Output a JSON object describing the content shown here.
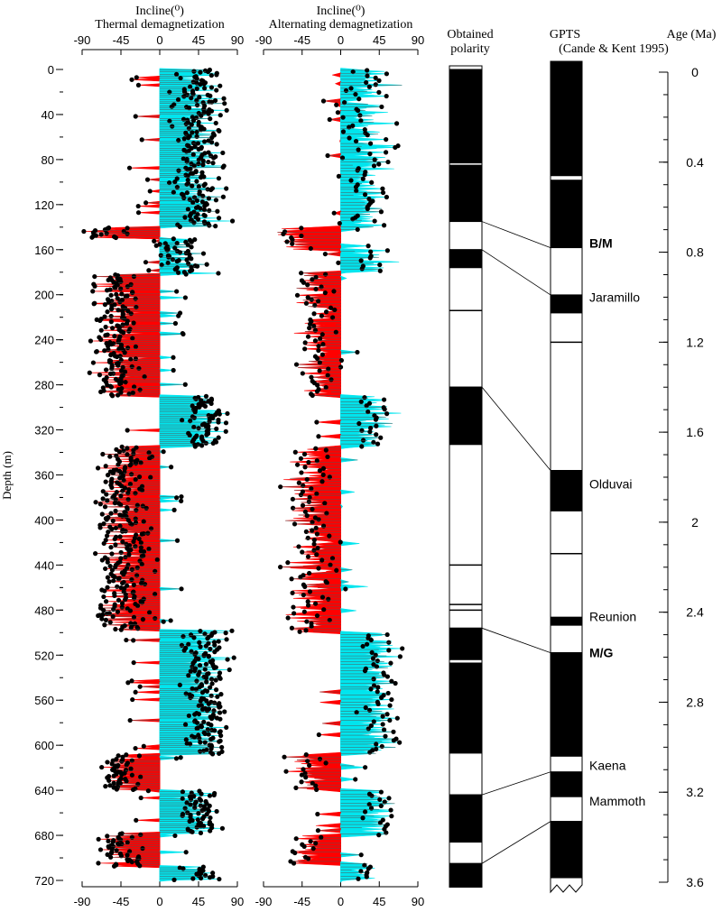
{
  "chart_data": {
    "type": "composite-magnetostratigraphy",
    "depth_axis": {
      "label": "Depth (m)",
      "ylim": [
        0,
        720
      ],
      "major_ticks": [
        0,
        40,
        80,
        120,
        160,
        200,
        240,
        280,
        320,
        360,
        400,
        440,
        480,
        520,
        560,
        600,
        640,
        680,
        720
      ],
      "minor_step": 20
    },
    "inclination_ticks": [
      -90,
      -45,
      0,
      45,
      90
    ],
    "xlim": [
      -90,
      90
    ],
    "panels": [
      {
        "key": "thermal",
        "title_line1": "Incline(⁰)",
        "title_line2": "Thermal demagnetization",
        "normal_color": "#00e5ee",
        "reversed_color": "#ff0000",
        "intervals": [
          {
            "from": 0,
            "to": 140,
            "mean": 45,
            "spread": 30
          },
          {
            "from": 140,
            "to": 150,
            "mean": -60,
            "spread": 25
          },
          {
            "from": 150,
            "to": 182,
            "mean": 25,
            "spread": 35
          },
          {
            "from": 182,
            "to": 290,
            "mean": -50,
            "spread": 25
          },
          {
            "from": 290,
            "to": 335,
            "mean": 50,
            "spread": 25
          },
          {
            "from": 335,
            "to": 498,
            "mean": -42,
            "spread": 30
          },
          {
            "from": 498,
            "to": 608,
            "mean": 55,
            "spread": 25
          },
          {
            "from": 608,
            "to": 640,
            "mean": -45,
            "spread": 25
          },
          {
            "from": 640,
            "to": 678,
            "mean": 45,
            "spread": 25
          },
          {
            "from": 678,
            "to": 708,
            "mean": -45,
            "spread": 25
          },
          {
            "from": 708,
            "to": 720,
            "mean": 45,
            "spread": 25
          }
        ]
      },
      {
        "key": "af",
        "title_line1": "Incline(⁰)",
        "title_line2": "Alternating demagnetization",
        "normal_color": "#00e5ee",
        "reversed_color": "#ff0000",
        "intervals": [
          {
            "from": 0,
            "to": 140,
            "mean": 30,
            "spread": 30
          },
          {
            "from": 140,
            "to": 160,
            "mean": -50,
            "spread": 25
          },
          {
            "from": 160,
            "to": 180,
            "mean": 30,
            "spread": 30
          },
          {
            "from": 180,
            "to": 290,
            "mean": -25,
            "spread": 25
          },
          {
            "from": 290,
            "to": 335,
            "mean": 35,
            "spread": 25
          },
          {
            "from": 335,
            "to": 500,
            "mean": -35,
            "spread": 30
          },
          {
            "from": 500,
            "to": 608,
            "mean": 45,
            "spread": 25
          },
          {
            "from": 608,
            "to": 640,
            "mean": -40,
            "spread": 20
          },
          {
            "from": 640,
            "to": 680,
            "mean": 45,
            "spread": 20
          },
          {
            "from": 680,
            "to": 705,
            "mean": -40,
            "spread": 20
          },
          {
            "from": 705,
            "to": 720,
            "mean": 25,
            "spread": 20
          }
        ]
      }
    ],
    "obtained_polarity": {
      "title_line1": "Obtained",
      "title_line2": "polarity",
      "bands": [
        {
          "from": 0,
          "to": 83,
          "polarity": "normal"
        },
        {
          "from": 85,
          "to": 135,
          "polarity": "normal"
        },
        {
          "from": 135,
          "to": 160,
          "polarity": "reversed"
        },
        {
          "from": 160,
          "to": 176,
          "polarity": "normal"
        },
        {
          "from": 176,
          "to": 282,
          "polarity": "reversed"
        },
        {
          "from": 282,
          "to": 333,
          "polarity": "normal"
        },
        {
          "from": 333,
          "to": 496,
          "polarity": "reversed"
        },
        {
          "from": 496,
          "to": 524,
          "polarity": "normal"
        },
        {
          "from": 524,
          "to": 527,
          "polarity": "reversed"
        },
        {
          "from": 527,
          "to": 607,
          "polarity": "normal"
        },
        {
          "from": 607,
          "to": 644,
          "polarity": "reversed"
        },
        {
          "from": 644,
          "to": 686,
          "polarity": "normal"
        },
        {
          "from": 686,
          "to": 705,
          "polarity": "reversed"
        },
        {
          "from": 705,
          "to": 726,
          "polarity": "normal"
        }
      ],
      "extra_lines": [
        214,
        440,
        475,
        480
      ]
    },
    "gpts": {
      "title_line1": "GPTS",
      "title_line2": "(Cande & Kent 1995)",
      "bands": [
        {
          "from": 0,
          "to": 0.46,
          "polarity": "normal"
        },
        {
          "from": 0.48,
          "to": 0.78,
          "polarity": "normal"
        },
        {
          "from": 0.78,
          "to": 0.99,
          "polarity": "reversed"
        },
        {
          "from": 0.99,
          "to": 1.07,
          "polarity": "normal"
        },
        {
          "from": 1.07,
          "to": 1.77,
          "polarity": "reversed"
        },
        {
          "from": 1.77,
          "to": 1.95,
          "polarity": "normal"
        },
        {
          "from": 1.95,
          "to": 2.58,
          "polarity": "reversed"
        },
        {
          "from": 2.58,
          "to": 3.04,
          "polarity": "normal"
        },
        {
          "from": 3.04,
          "to": 3.11,
          "polarity": "reversed"
        },
        {
          "from": 3.11,
          "to": 3.22,
          "polarity": "normal"
        },
        {
          "from": 3.22,
          "to": 3.33,
          "polarity": "reversed"
        },
        {
          "from": 3.33,
          "to": 3.58,
          "polarity": "normal"
        }
      ],
      "extra_lines": [
        1.2,
        2.14
      ],
      "thin_normal": [
        {
          "from": 2.42,
          "to": 2.46
        }
      ],
      "labels": [
        {
          "text": "B/M",
          "age": 0.76,
          "bold": true
        },
        {
          "text": "Jaramillo",
          "age": 1.0,
          "bold": false
        },
        {
          "text": "Olduvai",
          "age": 1.83,
          "bold": false
        },
        {
          "text": "Reunion",
          "age": 2.42,
          "bold": false
        },
        {
          "text": "M/G",
          "age": 2.58,
          "bold": true
        },
        {
          "text": "Kaena",
          "age": 3.08,
          "bold": false
        },
        {
          "text": "Mammoth",
          "age": 3.24,
          "bold": false
        }
      ]
    },
    "correlations": [
      {
        "depth": 135,
        "age": 0.78
      },
      {
        "depth": 160,
        "age": 0.99
      },
      {
        "depth": 282,
        "age": 1.77
      },
      {
        "depth": 496,
        "age": 2.58
      },
      {
        "depth": 644,
        "age": 3.11
      },
      {
        "depth": 705,
        "age": 3.33
      }
    ],
    "age_axis": {
      "label": "Age (Ma)",
      "ylim": [
        0,
        3.6
      ],
      "major_ticks": [
        0,
        0.4,
        0.8,
        1.2,
        1.6,
        2,
        2.4,
        2.8,
        3.2,
        3.6
      ],
      "minor_step": 0.1
    }
  }
}
